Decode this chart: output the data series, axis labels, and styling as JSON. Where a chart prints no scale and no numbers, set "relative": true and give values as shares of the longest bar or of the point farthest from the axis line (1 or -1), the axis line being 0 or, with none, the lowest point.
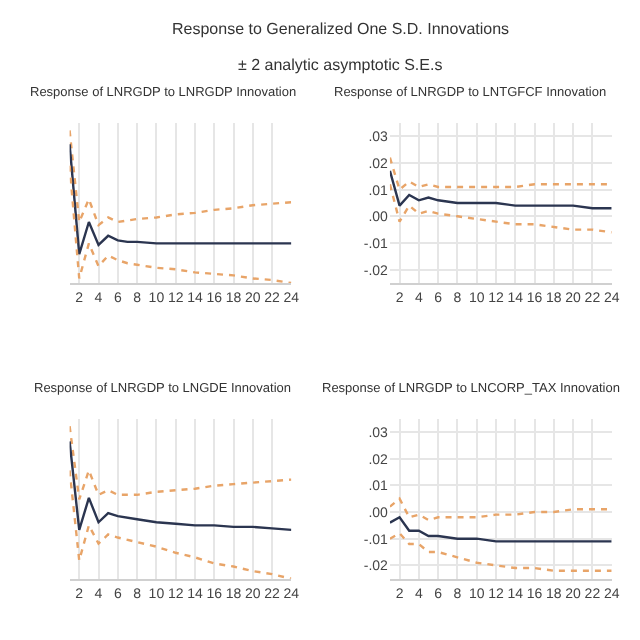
{
  "chart_data": [
    {
      "type": "line",
      "title": "Response of LNRGDP to LNRGDP Innovation",
      "annotations": [
        "Response to Generalized One S.D. Innovations",
        "± 2 analytic asymptotic S.E.s"
      ],
      "relative": true,
      "tick_labels": "x",
      "grid": true,
      "x": [
        1,
        2,
        3,
        4,
        5,
        6,
        7,
        8,
        10,
        12,
        14,
        16,
        18,
        20,
        22,
        24
      ],
      "xlim": [
        1,
        24
      ],
      "xticks": [
        2,
        4,
        6,
        8,
        10,
        12,
        14,
        16,
        18,
        20,
        22,
        24
      ],
      "series": [
        {
          "color": "#e8a468",
          "line_style": "dotted",
          "values": [
            1.0,
            0.4,
            0.55,
            0.38,
            0.43,
            0.4,
            0.41,
            0.42,
            0.43,
            0.45,
            0.46,
            0.48,
            0.49,
            0.51,
            0.52,
            0.53
          ]
        },
        {
          "color": "#2b3550",
          "line_style": "solid",
          "values": [
            0.91,
            0.19,
            0.4,
            0.25,
            0.31,
            0.28,
            0.27,
            0.27,
            0.26,
            0.26,
            0.26,
            0.26,
            0.26,
            0.26,
            0.26,
            0.26
          ]
        },
        {
          "color": "#e8a468",
          "line_style": "dotted",
          "values": [
            0.77,
            0.03,
            0.26,
            0.11,
            0.18,
            0.15,
            0.13,
            0.12,
            0.1,
            0.09,
            0.07,
            0.06,
            0.05,
            0.03,
            0.02,
            0.0
          ]
        }
      ]
    },
    {
      "type": "line",
      "title": "Response of LNRGDP to LNTGFCF Innovation",
      "grid": true,
      "x": [
        1,
        2,
        3,
        4,
        5,
        6,
        8,
        10,
        12,
        14,
        16,
        18,
        20,
        22,
        24
      ],
      "xlim": [
        1,
        24
      ],
      "xticks": [
        2,
        4,
        6,
        8,
        10,
        12,
        14,
        16,
        18,
        20,
        22,
        24
      ],
      "ylim": [
        -0.025,
        0.035
      ],
      "yticks": [
        {
          "value": -0.02,
          "label": "-.02"
        },
        {
          "value": -0.01,
          "label": "-.01"
        },
        {
          "value": 0,
          "label": ".00"
        },
        {
          "value": 0.01,
          "label": ".01"
        },
        {
          "value": 0.02,
          "label": ".02"
        },
        {
          "value": 0.03,
          "label": ".03"
        }
      ],
      "series": [
        {
          "color": "#e8a468",
          "line_style": "dotted",
          "values": [
            0.022,
            0.01,
            0.013,
            0.011,
            0.012,
            0.011,
            0.011,
            0.011,
            0.011,
            0.011,
            0.012,
            0.012,
            0.012,
            0.012,
            0.012
          ]
        },
        {
          "color": "#2b3550",
          "line_style": "solid",
          "values": [
            0.017,
            0.004,
            0.008,
            0.006,
            0.007,
            0.006,
            0.005,
            0.005,
            0.005,
            0.004,
            0.004,
            0.004,
            0.004,
            0.003,
            0.003
          ]
        },
        {
          "color": "#e8a468",
          "line_style": "dotted",
          "values": [
            0.012,
            -0.002,
            0.004,
            0.001,
            0.002,
            0.001,
            0.0,
            -0.001,
            -0.002,
            -0.003,
            -0.003,
            -0.004,
            -0.005,
            -0.005,
            -0.006
          ]
        }
      ]
    },
    {
      "type": "line",
      "title": "Response of LNRGDP to LNGDE Innovation",
      "relative": true,
      "tick_labels": "x",
      "grid": true,
      "x": [
        1,
        2,
        3,
        4,
        5,
        6,
        8,
        10,
        12,
        14,
        16,
        18,
        20,
        22,
        24
      ],
      "xlim": [
        1,
        24
      ],
      "xticks": [
        2,
        4,
        6,
        8,
        10,
        12,
        14,
        16,
        18,
        20,
        22,
        24
      ],
      "series": [
        {
          "color": "#e8a468",
          "line_style": "dotted",
          "values": [
            1.0,
            0.52,
            0.71,
            0.55,
            0.58,
            0.55,
            0.55,
            0.57,
            0.58,
            0.59,
            0.61,
            0.62,
            0.63,
            0.64,
            0.65
          ]
        },
        {
          "color": "#2b3550",
          "line_style": "solid",
          "values": [
            0.9,
            0.32,
            0.53,
            0.37,
            0.43,
            0.41,
            0.39,
            0.37,
            0.36,
            0.35,
            0.35,
            0.34,
            0.34,
            0.33,
            0.32
          ]
        },
        {
          "color": "#e8a468",
          "line_style": "dotted",
          "values": [
            0.71,
            0.12,
            0.35,
            0.23,
            0.29,
            0.27,
            0.24,
            0.21,
            0.17,
            0.14,
            0.1,
            0.08,
            0.05,
            0.03,
            0.0
          ]
        }
      ]
    },
    {
      "type": "line",
      "title": "Response of LNRGDP to LNCORP_TAX Innovation",
      "grid": true,
      "x": [
        1,
        2,
        3,
        4,
        5,
        6,
        8,
        10,
        12,
        14,
        16,
        18,
        20,
        22,
        24
      ],
      "xlim": [
        1,
        24
      ],
      "xticks": [
        2,
        4,
        6,
        8,
        10,
        12,
        14,
        16,
        18,
        20,
        22,
        24
      ],
      "ylim": [
        -0.025,
        0.035
      ],
      "yticks": [
        {
          "value": -0.02,
          "label": "-.02"
        },
        {
          "value": -0.01,
          "label": "-.01"
        },
        {
          "value": 0,
          "label": ".00"
        },
        {
          "value": 0.01,
          "label": ".01"
        },
        {
          "value": 0.02,
          "label": ".02"
        },
        {
          "value": 0.03,
          "label": ".03"
        }
      ],
      "series": [
        {
          "color": "#e8a468",
          "line_style": "dotted",
          "values": [
            0.002,
            0.005,
            -0.002,
            -0.001,
            -0.003,
            -0.002,
            -0.002,
            -0.002,
            -0.001,
            -0.001,
            0.0,
            0.0,
            0.001,
            0.001,
            0.001
          ]
        },
        {
          "color": "#2b3550",
          "line_style": "solid",
          "values": [
            -0.004,
            -0.002,
            -0.007,
            -0.007,
            -0.009,
            -0.009,
            -0.01,
            -0.01,
            -0.011,
            -0.011,
            -0.011,
            -0.011,
            -0.011,
            -0.011,
            -0.011
          ]
        },
        {
          "color": "#e8a468",
          "line_style": "dotted",
          "values": [
            -0.01,
            -0.008,
            -0.012,
            -0.012,
            -0.015,
            -0.015,
            -0.017,
            -0.019,
            -0.02,
            -0.021,
            -0.021,
            -0.022,
            -0.022,
            -0.022,
            -0.022
          ]
        }
      ]
    }
  ]
}
